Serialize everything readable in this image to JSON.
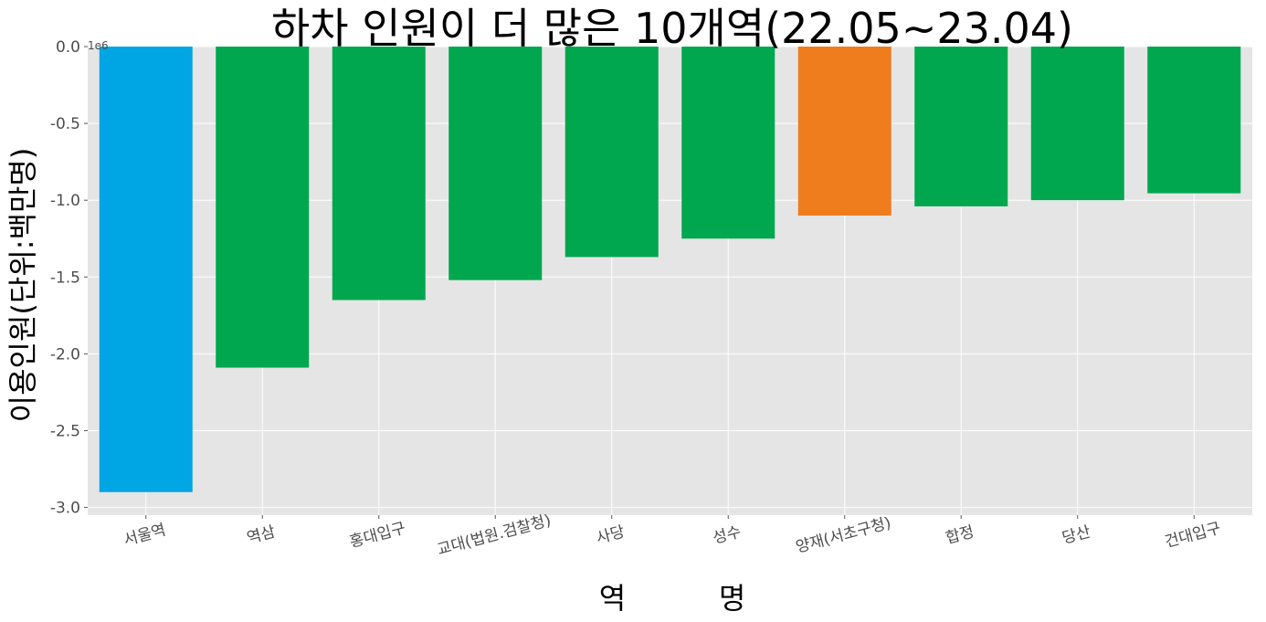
{
  "chart_data": {
    "type": "bar",
    "title": "하차 인원이 더 많은 10개역(22.05~23.04)",
    "xlabel": "역          명",
    "ylabel": "이용인원(단위:백만명)",
    "offset_label": "1e6",
    "categories": [
      "서울역",
      "역삼",
      "홍대입구",
      "교대(법원.검찰청)",
      "사당",
      "성수",
      "양재(서초구청)",
      "합정",
      "당산",
      "건대입구"
    ],
    "values": [
      -2.9,
      -2.09,
      -1.65,
      -1.52,
      -1.37,
      -1.25,
      -1.1,
      -1.04,
      -1.0,
      -0.955
    ],
    "bar_colors": [
      "#00a5e3",
      "#00a74e",
      "#00a74e",
      "#00a74e",
      "#00a74e",
      "#00a74e",
      "#ef7d1e",
      "#00a74e",
      "#00a74e",
      "#00a74e"
    ],
    "ylim": [
      -3.05,
      0.0
    ],
    "yticks": [
      0.0,
      -0.5,
      -1.0,
      -1.5,
      -2.0,
      -2.5,
      -3.0
    ],
    "ytick_labels": [
      "0.0",
      "-0.5",
      "-1.0",
      "-1.5",
      "-2.0",
      "-2.5",
      "-3.0"
    ],
    "grid": true,
    "background": "#e5e5e5",
    "grid_color": "#ffffff"
  }
}
